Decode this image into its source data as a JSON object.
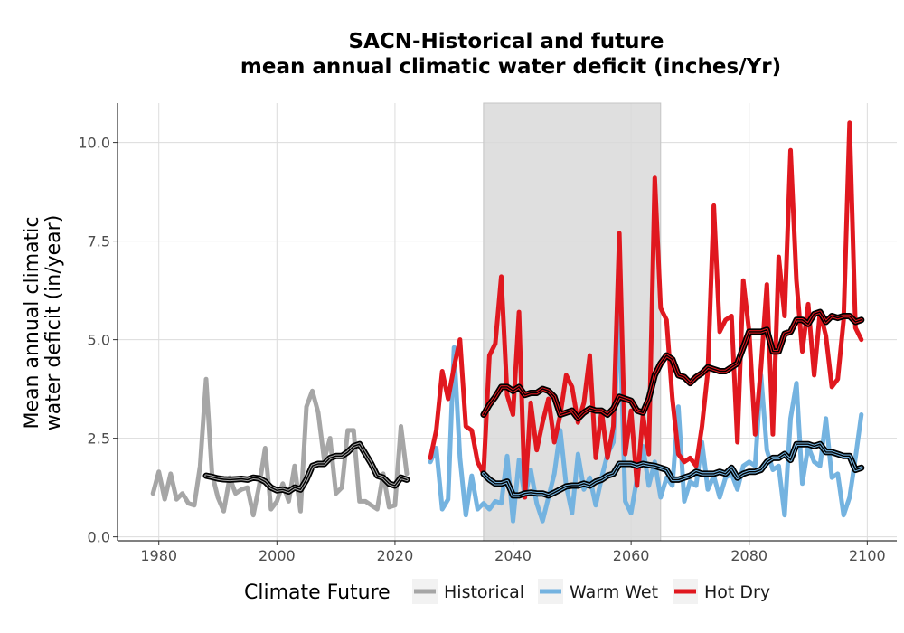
{
  "chart_data": {
    "type": "line",
    "title": [
      "SACN-Historical and future",
      "mean annual climatic water deficit (inches/Yr)"
    ],
    "xlabel": "",
    "ylabel": [
      "Mean annual climatic",
      "water deficit (in/year)"
    ],
    "xlim": [
      1973,
      2105
    ],
    "ylim": [
      -0.1,
      11.0
    ],
    "xticks": [
      1980,
      2000,
      2020,
      2040,
      2060,
      2080,
      2100
    ],
    "xtick_labels": [
      "1980",
      "2000",
      "2020",
      "2040",
      "2060",
      "2080",
      "2100"
    ],
    "yticks": [
      0,
      2.5,
      5,
      7.5,
      10
    ],
    "ytick_labels": [
      "0.0",
      "2.5",
      "5.0",
      "7.5",
      "10.0"
    ],
    "grid": true,
    "shaded_period": [
      2035,
      2065
    ],
    "legend": {
      "title": "Climate Future",
      "position": "bottom",
      "entries": [
        "Historical",
        "Warm Wet",
        "Hot Dry"
      ]
    },
    "series": [
      {
        "name": "Historical",
        "color": "#a6a6a6",
        "x": [
          1979,
          1980,
          1981,
          1982,
          1983,
          1984,
          1985,
          1986,
          1987,
          1988,
          1989,
          1990,
          1991,
          1992,
          1993,
          1994,
          1995,
          1996,
          1997,
          1998,
          1999,
          2000,
          2001,
          2002,
          2003,
          2004,
          2005,
          2006,
          2007,
          2008,
          2009,
          2010,
          2011,
          2012,
          2013,
          2014,
          2015,
          2016,
          2017,
          2018,
          2019,
          2020,
          2021,
          2022
        ],
        "values": [
          1.1,
          1.65,
          0.95,
          1.6,
          0.95,
          1.1,
          0.85,
          0.8,
          1.8,
          4.0,
          1.6,
          1.0,
          0.65,
          1.5,
          1.1,
          1.2,
          1.25,
          0.55,
          1.3,
          2.25,
          0.7,
          0.9,
          1.35,
          0.9,
          1.8,
          0.65,
          3.3,
          3.7,
          3.15,
          1.95,
          2.5,
          1.1,
          1.25,
          2.7,
          2.7,
          0.9,
          0.9,
          0.8,
          0.7,
          1.6,
          0.75,
          0.8,
          2.8,
          1.6
        ]
      },
      {
        "name": "Historical smooth",
        "color": "#000000",
        "x": [
          1988,
          1989,
          1990,
          1991,
          1992,
          1993,
          1994,
          1995,
          1996,
          1997,
          1998,
          1999,
          2000,
          2001,
          2002,
          2003,
          2004,
          2005,
          2006,
          2007,
          2008,
          2009,
          2010,
          2011,
          2012,
          2013,
          2014,
          2015,
          2016,
          2017,
          2018,
          2019,
          2020,
          2021,
          2022
        ],
        "values": [
          1.55,
          1.52,
          1.48,
          1.46,
          1.45,
          1.46,
          1.47,
          1.45,
          1.5,
          1.48,
          1.4,
          1.25,
          1.18,
          1.2,
          1.15,
          1.25,
          1.2,
          1.45,
          1.8,
          1.85,
          1.85,
          2.0,
          2.05,
          2.05,
          2.15,
          2.3,
          2.35,
          2.1,
          1.85,
          1.55,
          1.5,
          1.35,
          1.3,
          1.5,
          1.45
        ]
      },
      {
        "name": "Warm Wet",
        "color": "#74b3e0",
        "x": [
          2026,
          2027,
          2028,
          2029,
          2030,
          2031,
          2032,
          2033,
          2034,
          2035,
          2036,
          2037,
          2038,
          2039,
          2040,
          2041,
          2042,
          2043,
          2044,
          2045,
          2046,
          2047,
          2048,
          2049,
          2050,
          2051,
          2052,
          2053,
          2054,
          2055,
          2056,
          2057,
          2058,
          2059,
          2060,
          2061,
          2062,
          2063,
          2064,
          2065,
          2066,
          2067,
          2068,
          2069,
          2070,
          2071,
          2072,
          2073,
          2074,
          2075,
          2076,
          2077,
          2078,
          2079,
          2080,
          2081,
          2082,
          2083,
          2084,
          2085,
          2086,
          2087,
          2088,
          2089,
          2090,
          2091,
          2092,
          2093,
          2094,
          2095,
          2096,
          2097,
          2098,
          2099
        ],
        "values": [
          1.9,
          2.25,
          0.7,
          0.95,
          4.8,
          2.0,
          0.55,
          1.55,
          0.7,
          0.85,
          0.7,
          0.9,
          0.85,
          2.05,
          0.4,
          1.95,
          1.0,
          1.7,
          0.85,
          0.4,
          1.0,
          1.6,
          2.7,
          1.3,
          0.6,
          2.1,
          1.2,
          1.5,
          0.8,
          1.5,
          2.1,
          2.4,
          5.8,
          0.9,
          0.6,
          1.5,
          2.3,
          1.3,
          1.9,
          1.0,
          1.5,
          1.3,
          3.3,
          0.9,
          1.4,
          1.3,
          2.4,
          1.2,
          1.55,
          1.0,
          1.5,
          1.6,
          1.2,
          1.8,
          1.9,
          1.8,
          4.1,
          2.2,
          1.7,
          1.8,
          0.55,
          3.0,
          3.9,
          1.35,
          2.3,
          1.9,
          1.8,
          3.0,
          1.5,
          1.6,
          0.55,
          1.0,
          2.0,
          3.1
        ]
      },
      {
        "name": "Warm Wet smooth",
        "color": "#000000",
        "x": [
          2035,
          2036,
          2037,
          2038,
          2039,
          2040,
          2041,
          2042,
          2043,
          2044,
          2045,
          2046,
          2047,
          2048,
          2049,
          2050,
          2051,
          2052,
          2053,
          2054,
          2055,
          2056,
          2057,
          2058,
          2059,
          2060,
          2061,
          2062,
          2063,
          2064,
          2065,
          2066,
          2067,
          2068,
          2069,
          2070,
          2071,
          2072,
          2073,
          2074,
          2075,
          2076,
          2077,
          2078,
          2079,
          2080,
          2081,
          2082,
          2083,
          2084,
          2085,
          2086,
          2087,
          2088,
          2089,
          2090,
          2091,
          2092,
          2093,
          2094,
          2095,
          2096,
          2097,
          2098,
          2099
        ],
        "values": [
          1.6,
          1.45,
          1.35,
          1.35,
          1.4,
          1.05,
          1.05,
          1.1,
          1.12,
          1.1,
          1.1,
          1.05,
          1.12,
          1.2,
          1.28,
          1.3,
          1.3,
          1.35,
          1.3,
          1.4,
          1.45,
          1.55,
          1.6,
          1.85,
          1.85,
          1.85,
          1.8,
          1.85,
          1.82,
          1.8,
          1.75,
          1.7,
          1.45,
          1.45,
          1.5,
          1.55,
          1.65,
          1.6,
          1.6,
          1.6,
          1.65,
          1.6,
          1.75,
          1.5,
          1.6,
          1.65,
          1.65,
          1.7,
          1.9,
          2.0,
          2.0,
          2.1,
          1.95,
          2.35,
          2.35,
          2.35,
          2.3,
          2.35,
          2.15,
          2.15,
          2.1,
          2.05,
          2.05,
          1.7,
          1.75
        ]
      },
      {
        "name": "Hot Dry",
        "color": "#e0181f",
        "x": [
          2026,
          2027,
          2028,
          2029,
          2030,
          2031,
          2032,
          2033,
          2034,
          2035,
          2036,
          2037,
          2038,
          2039,
          2040,
          2041,
          2042,
          2043,
          2044,
          2045,
          2046,
          2047,
          2048,
          2049,
          2050,
          2051,
          2052,
          2053,
          2054,
          2055,
          2056,
          2057,
          2058,
          2059,
          2060,
          2061,
          2062,
          2063,
          2064,
          2065,
          2066,
          2067,
          2068,
          2069,
          2070,
          2071,
          2072,
          2073,
          2074,
          2075,
          2076,
          2077,
          2078,
          2079,
          2080,
          2081,
          2082,
          2083,
          2084,
          2085,
          2086,
          2087,
          2088,
          2089,
          2090,
          2091,
          2092,
          2093,
          2094,
          2095,
          2096,
          2097,
          2098,
          2099
        ],
        "values": [
          2.0,
          2.7,
          4.2,
          3.5,
          4.3,
          5.0,
          2.8,
          2.7,
          1.9,
          1.6,
          4.6,
          4.9,
          6.6,
          3.6,
          3.1,
          5.7,
          1.0,
          3.4,
          2.2,
          2.9,
          3.5,
          2.4,
          3.1,
          4.1,
          3.8,
          2.9,
          3.4,
          4.6,
          2.0,
          3.2,
          2.0,
          2.8,
          7.7,
          2.1,
          3.2,
          1.3,
          3.1,
          2.1,
          9.1,
          5.8,
          5.5,
          3.5,
          2.1,
          1.9,
          2.0,
          1.8,
          2.8,
          4.2,
          8.4,
          5.2,
          5.5,
          5.6,
          2.4,
          6.5,
          5.2,
          2.6,
          4.3,
          6.4,
          2.6,
          7.1,
          5.6,
          9.8,
          6.5,
          4.7,
          5.9,
          4.1,
          5.7,
          5.1,
          3.8,
          4.0,
          5.5,
          10.5,
          5.3,
          5.0
        ]
      },
      {
        "name": "Hot Dry smooth",
        "color": "#000000",
        "x": [
          2035,
          2036,
          2037,
          2038,
          2039,
          2040,
          2041,
          2042,
          2043,
          2044,
          2045,
          2046,
          2047,
          2048,
          2049,
          2050,
          2051,
          2052,
          2053,
          2054,
          2055,
          2056,
          2057,
          2058,
          2059,
          2060,
          2061,
          2062,
          2063,
          2064,
          2065,
          2066,
          2067,
          2068,
          2069,
          2070,
          2071,
          2072,
          2073,
          2074,
          2075,
          2076,
          2077,
          2078,
          2079,
          2080,
          2081,
          2082,
          2083,
          2084,
          2085,
          2086,
          2087,
          2088,
          2089,
          2090,
          2091,
          2092,
          2093,
          2094,
          2095,
          2096,
          2097,
          2098,
          2099
        ],
        "values": [
          3.1,
          3.35,
          3.55,
          3.8,
          3.8,
          3.7,
          3.8,
          3.6,
          3.65,
          3.65,
          3.75,
          3.7,
          3.55,
          3.1,
          3.15,
          3.2,
          3.0,
          3.15,
          3.25,
          3.2,
          3.2,
          3.1,
          3.25,
          3.55,
          3.5,
          3.45,
          3.2,
          3.15,
          3.5,
          4.1,
          4.4,
          4.6,
          4.5,
          4.1,
          4.05,
          3.9,
          4.05,
          4.15,
          4.3,
          4.25,
          4.2,
          4.2,
          4.3,
          4.4,
          4.8,
          5.2,
          5.2,
          5.2,
          5.25,
          4.7,
          4.7,
          5.15,
          5.2,
          5.5,
          5.5,
          5.4,
          5.65,
          5.7,
          5.45,
          5.6,
          5.55,
          5.6,
          5.6,
          5.45,
          5.5
        ]
      }
    ]
  }
}
